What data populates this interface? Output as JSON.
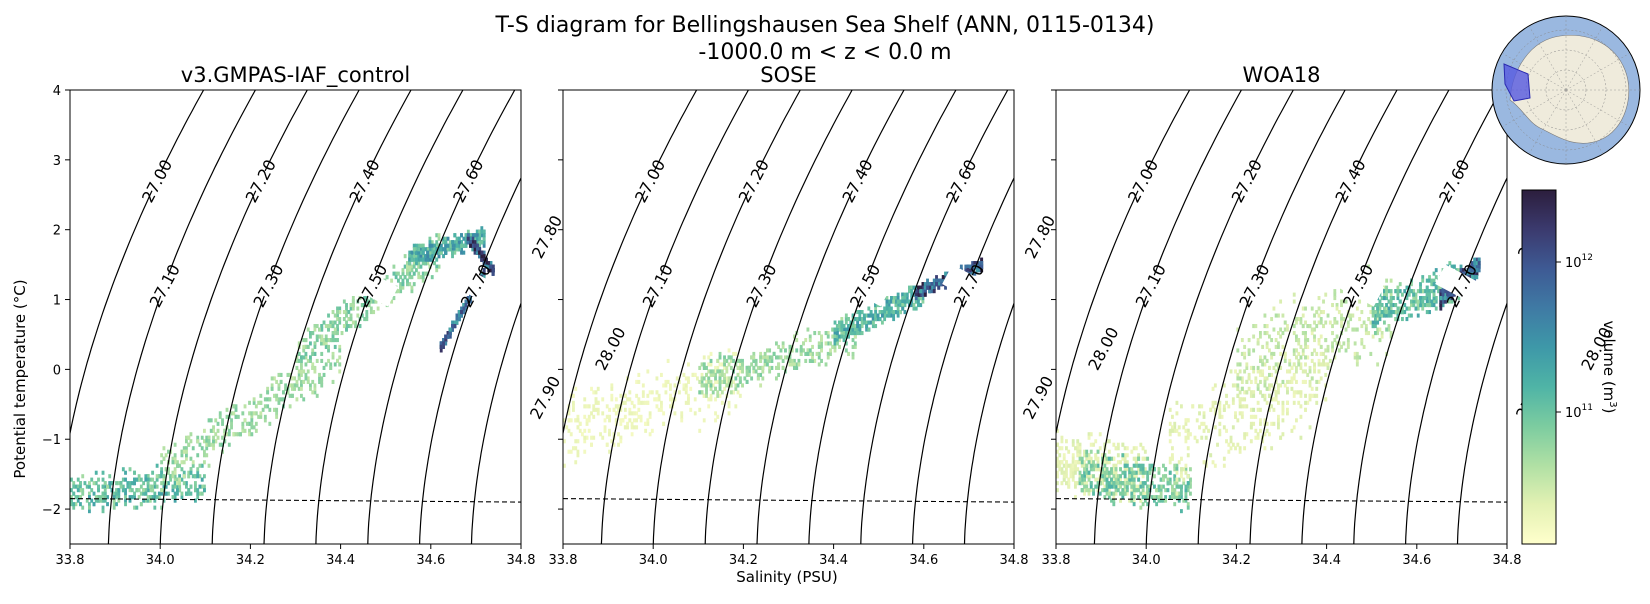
{
  "chart_data": {
    "type": "heatmap",
    "title_line1": "T-S diagram for Bellingshausen Sea Shelf (ANN, 0115-0134)",
    "title_line2": "-1000.0 m < z < 0.0 m",
    "xlabel": "Salinity (PSU)",
    "ylabel": "Potential temperature (°C)",
    "xlim": [
      33.8,
      34.8
    ],
    "ylim": [
      -2.5,
      4
    ],
    "xticks": [
      "33.8",
      "34.0",
      "34.2",
      "34.4",
      "34.6",
      "34.8"
    ],
    "yticks": [
      "−2",
      "−1",
      "0",
      "1",
      "2",
      "3",
      "4"
    ],
    "freezing_line": {
      "t_at_33_8": -1.85,
      "t_at_34_8": -1.9,
      "style": "dashed"
    },
    "density_contours": [
      "27.00",
      "27.10",
      "27.20",
      "27.30",
      "27.40",
      "27.50",
      "27.60",
      "27.70",
      "27.80",
      "27.90",
      "28.00"
    ],
    "panels": [
      {
        "title": "v3.GMPAS-IAF_control",
        "blobs": [
          {
            "s": [
              33.8,
              34.1
            ],
            "t": [
              -1.8,
              -1.6
            ],
            "w": 0.1,
            "d": 0.45
          },
          {
            "s": [
              34.0,
              34.4
            ],
            "t": [
              -1.5,
              0.2
            ],
            "w": 0.12,
            "d": 0.3
          },
          {
            "s": [
              34.3,
              34.62
            ],
            "t": [
              0.2,
              1.7
            ],
            "w": 0.1,
            "d": 0.35
          },
          {
            "s": [
              34.55,
              34.72
            ],
            "t": [
              1.6,
              1.9
            ],
            "w": 0.05,
            "d": 0.55
          },
          {
            "s": [
              34.68,
              34.74
            ],
            "t": [
              1.9,
              1.4
            ],
            "w": 0.02,
            "d": 0.95
          },
          {
            "s": [
              34.62,
              34.72
            ],
            "t": [
              0.3,
              1.4
            ],
            "w": 0.015,
            "d": 0.8
          }
        ]
      },
      {
        "title": "SOSE",
        "blobs": [
          {
            "s": [
              33.8,
              34.2
            ],
            "t": [
              -0.9,
              -0.1
            ],
            "w": 0.18,
            "d": 0.08
          },
          {
            "s": [
              34.1,
              34.45
            ],
            "t": [
              -0.2,
              0.5
            ],
            "w": 0.1,
            "d": 0.3
          },
          {
            "s": [
              34.4,
              34.6
            ],
            "t": [
              0.5,
              1.1
            ],
            "w": 0.06,
            "d": 0.5
          },
          {
            "s": [
              34.58,
              34.73
            ],
            "t": [
              1.1,
              1.5
            ],
            "w": 0.03,
            "d": 0.9
          }
        ]
      },
      {
        "title": "WOA18",
        "blobs": [
          {
            "s": [
              33.8,
              34.0
            ],
            "t": [
              -1.3,
              -1.5
            ],
            "w": 0.15,
            "d": 0.12
          },
          {
            "s": [
              33.85,
              34.1
            ],
            "t": [
              -1.5,
              -1.7
            ],
            "w": 0.12,
            "d": 0.4
          },
          {
            "s": [
              34.05,
              34.4
            ],
            "t": [
              -1.2,
              0.0
            ],
            "w": 0.25,
            "d": 0.12
          },
          {
            "s": [
              34.2,
              34.55
            ],
            "t": [
              0.0,
              0.9
            ],
            "w": 0.25,
            "d": 0.2
          },
          {
            "s": [
              34.5,
              34.7
            ],
            "t": [
              0.8,
              1.3
            ],
            "w": 0.1,
            "d": 0.45
          },
          {
            "s": [
              34.65,
              34.74
            ],
            "t": [
              1.0,
              1.5
            ],
            "w": 0.05,
            "d": 0.85
          }
        ]
      }
    ],
    "colorbar": {
      "label_text": "volume (m",
      "label_sup": "3",
      "label_close": ")",
      "tick_base": "10",
      "tick_exp_hi": "12",
      "tick_exp_lo": "11",
      "colors": [
        "#2c1e3d",
        "#3b3a6e",
        "#3e5a94",
        "#3f7aa4",
        "#3e98a8",
        "#4fb4a6",
        "#7ccca0",
        "#b0e0a4",
        "#e3f1b3",
        "#ffffcc"
      ]
    },
    "inset_map": {
      "region": "Bellingshausen Sea Shelf",
      "ocean_color": "#9ab8e0",
      "land_color": "#efebdc",
      "region_color": "#5559e0"
    }
  }
}
